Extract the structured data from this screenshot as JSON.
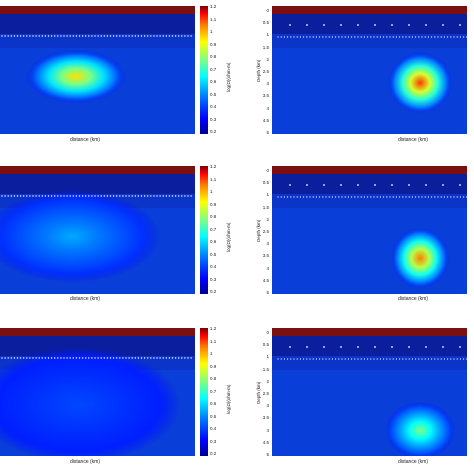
{
  "chart_data": [
    {
      "type": "heatmap",
      "xlabel": "distance (km)",
      "colorbar": {
        "label": "log(Ω)(ohm-m)",
        "range": [
          0.2,
          1.2
        ],
        "ticks": [
          "1.2",
          "1.1",
          "1",
          "0.9",
          "0.8",
          "0.7",
          "0.6",
          "0.5",
          "0.4",
          "0.3",
          "0.2"
        ]
      },
      "anomaly": {
        "cx": 0.39,
        "cy": 0.55,
        "rx": 0.17,
        "ry": 0.14,
        "peak": 0.95
      }
    },
    {
      "type": "heatmap",
      "xlabel": "distance (km)",
      "ylabel": "Depth (km)",
      "yticks": [
        "0",
        "0.5",
        "1",
        "1.5",
        "2",
        "2.5",
        "3",
        "3.5",
        "4",
        "4.5",
        "5"
      ],
      "anomaly": {
        "cx": 0.76,
        "cy": 0.6,
        "rx": 0.11,
        "ry": 0.16,
        "peak": 1.1
      }
    },
    {
      "type": "heatmap",
      "xlabel": "distance (km)",
      "colorbar": {
        "label": "log(Ω)(ohm-m)",
        "range": [
          0.2,
          1.2
        ],
        "ticks": [
          "1.2",
          "1.1",
          "1",
          "0.9",
          "0.8",
          "0.7",
          "0.6",
          "0.5",
          "0.4",
          "0.3",
          "0.2"
        ]
      },
      "anomaly": {
        "cx": 0.37,
        "cy": 0.55,
        "rx": 0.3,
        "ry": 0.24,
        "peak": 0.55
      }
    },
    {
      "type": "heatmap",
      "xlabel": "distance (km)",
      "ylabel": "Depth (km)",
      "yticks": [
        "0",
        "0.5",
        "1",
        "1.5",
        "2",
        "2.5",
        "3",
        "3.5",
        "4",
        "4.5",
        "5"
      ],
      "anomaly": {
        "cx": 0.76,
        "cy": 0.72,
        "rx": 0.1,
        "ry": 0.16,
        "peak": 1.05
      }
    },
    {
      "type": "heatmap",
      "xlabel": "distance (km)",
      "colorbar": {
        "label": "log(Ω)(ohm-m)",
        "range": [
          0.2,
          1.2
        ],
        "ticks": [
          "1.2",
          "1.1",
          "1",
          "0.9",
          "0.8",
          "0.7",
          "0.6",
          "0.5",
          "0.4",
          "0.3",
          "0.2"
        ]
      },
      "anomaly": {
        "cx": 0.4,
        "cy": 0.6,
        "rx": 0.35,
        "ry": 0.3,
        "peak": 0.42
      }
    },
    {
      "type": "heatmap",
      "xlabel": "distance (km)",
      "ylabel": "Depth (km)",
      "yticks": [
        "0",
        "0.5",
        "1",
        "1.5",
        "2",
        "2.5",
        "3",
        "3.5",
        "4",
        "4.5",
        "5"
      ],
      "anomaly": {
        "cx": 0.76,
        "cy": 0.8,
        "rx": 0.12,
        "ry": 0.15,
        "peak": 0.78
      }
    }
  ],
  "colors": {
    "surface_band": "#7a1010",
    "background_deep": "#0a1a9a",
    "background": "#0a40e0"
  }
}
